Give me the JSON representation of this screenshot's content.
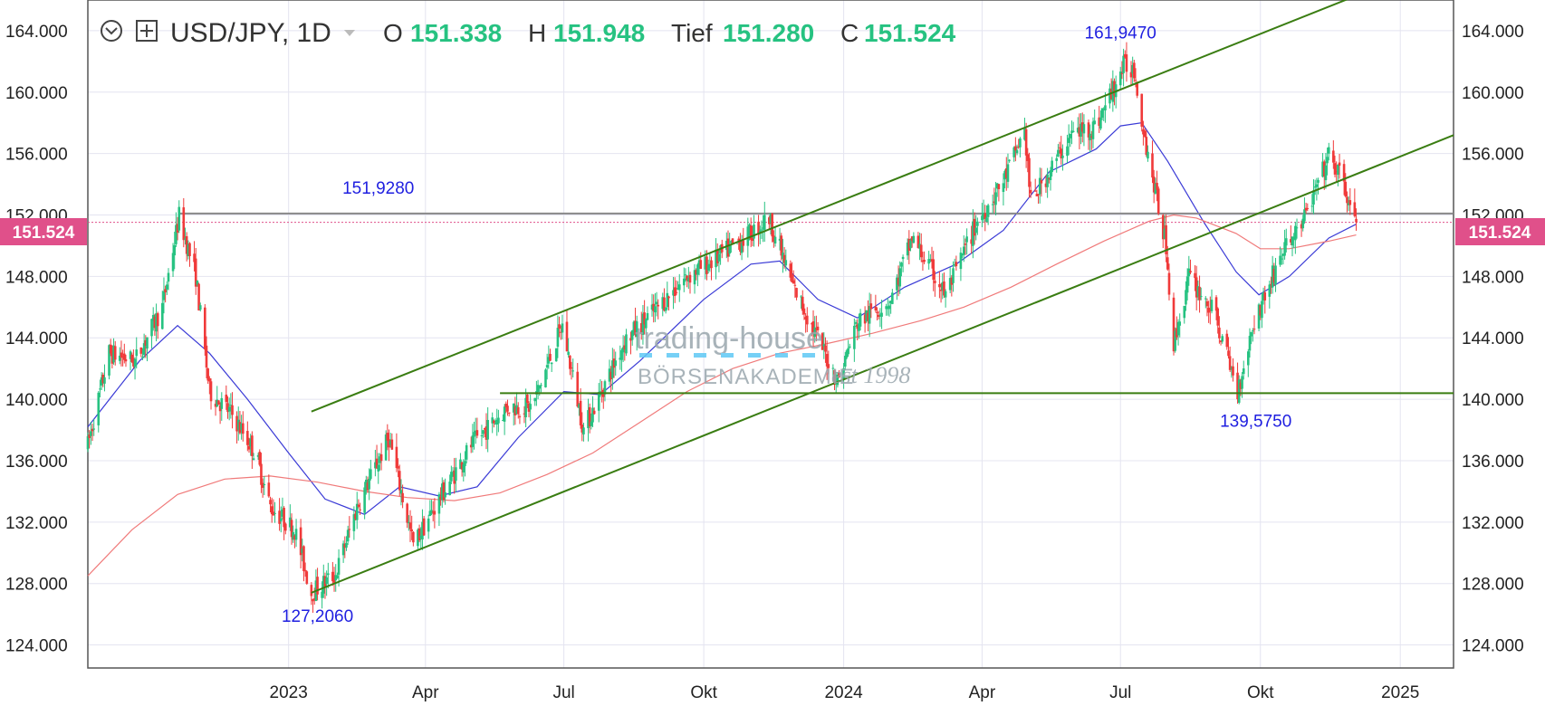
{
  "header": {
    "symbol": "USD/JPY, 1D",
    "open_label": "O",
    "open_value": "151.338",
    "high_label": "H",
    "high_value": "151.948",
    "low_label": "Tief",
    "low_value": "151.280",
    "close_label": "C",
    "close_value": "151.524"
  },
  "price_badge": "151.524",
  "watermark": {
    "line1": "trading-house",
    "line2": "BÖRSENAKADEMIE",
    "line3": "est 1998"
  },
  "colors": {
    "up": "#26c281",
    "down": "#f03a3a",
    "trendline": "#3a7d12",
    "ma_short": "#3a3ad6",
    "ma_long": "#f07a7a",
    "badge": "#e0508a",
    "annotation": "#1f1fe0",
    "resistance": "#888888",
    "grid": "#e4e4f0"
  },
  "chart_data": {
    "type": "candlestick",
    "title": "USD/JPY, 1D",
    "ylim": [
      122.5,
      166.0
    ],
    "y_ticks": [
      "124.000",
      "128.000",
      "132.000",
      "136.000",
      "140.000",
      "144.000",
      "148.000",
      "152.000",
      "156.000",
      "160.000",
      "164.000"
    ],
    "x_ticks": [
      {
        "label": "2023",
        "date": "2023-01-01"
      },
      {
        "label": "Apr",
        "date": "2023-04-01"
      },
      {
        "label": "Jul",
        "date": "2023-07-01"
      },
      {
        "label": "Okt",
        "date": "2023-10-01"
      },
      {
        "label": "2024",
        "date": "2024-01-01"
      },
      {
        "label": "Apr",
        "date": "2024-04-01"
      },
      {
        "label": "Jul",
        "date": "2024-07-01"
      },
      {
        "label": "Okt",
        "date": "2024-10-01"
      },
      {
        "label": "2025",
        "date": "2025-01-01"
      }
    ],
    "xlim": [
      "2022-08-22",
      "2025-02-05"
    ],
    "last_price": 151.524,
    "price_anchors": [
      [
        "2022-08-22",
        137.0
      ],
      [
        "2022-09-05",
        143.0
      ],
      [
        "2022-09-22",
        142.5
      ],
      [
        "2022-10-10",
        146.0
      ],
      [
        "2022-10-21",
        151.9
      ],
      [
        "2022-11-01",
        148.0
      ],
      [
        "2022-11-10",
        140.5
      ],
      [
        "2022-11-25",
        139.0
      ],
      [
        "2022-12-10",
        136.5
      ],
      [
        "2022-12-20",
        133.0
      ],
      [
        "2023-01-05",
        131.5
      ],
      [
        "2023-01-16",
        127.4
      ],
      [
        "2023-02-01",
        128.6
      ],
      [
        "2023-02-15",
        133.0
      ],
      [
        "2023-03-08",
        137.5
      ],
      [
        "2023-03-24",
        130.5
      ],
      [
        "2023-04-10",
        133.5
      ],
      [
        "2023-05-01",
        137.0
      ],
      [
        "2023-05-25",
        139.5
      ],
      [
        "2023-06-10",
        139.5
      ],
      [
        "2023-06-30",
        144.8
      ],
      [
        "2023-07-14",
        138.0
      ],
      [
        "2023-08-10",
        143.8
      ],
      [
        "2023-09-01",
        146.0
      ],
      [
        "2023-09-20",
        148.0
      ],
      [
        "2023-10-10",
        149.2
      ],
      [
        "2023-11-01",
        150.8
      ],
      [
        "2023-11-13",
        151.8
      ],
      [
        "2023-11-28",
        147.5
      ],
      [
        "2023-12-10",
        145.0
      ],
      [
        "2023-12-28",
        141.2
      ],
      [
        "2024-01-10",
        145.0
      ],
      [
        "2024-02-01",
        146.5
      ],
      [
        "2024-02-15",
        150.5
      ],
      [
        "2024-03-08",
        146.8
      ],
      [
        "2024-03-28",
        151.4
      ],
      [
        "2024-04-15",
        154.2
      ],
      [
        "2024-04-29",
        157.5
      ],
      [
        "2024-05-03",
        152.8
      ],
      [
        "2024-05-30",
        157.3
      ],
      [
        "2024-06-15",
        157.8
      ],
      [
        "2024-07-03",
        161.7
      ],
      [
        "2024-07-10",
        161.5
      ],
      [
        "2024-07-18",
        156.5
      ],
      [
        "2024-07-31",
        150.0
      ],
      [
        "2024-08-05",
        143.5
      ],
      [
        "2024-08-15",
        148.0
      ],
      [
        "2024-09-01",
        145.5
      ],
      [
        "2024-09-16",
        140.5
      ],
      [
        "2024-09-26",
        144.8
      ],
      [
        "2024-10-15",
        149.5
      ],
      [
        "2024-10-31",
        152.0
      ],
      [
        "2024-11-15",
        155.8
      ],
      [
        "2024-11-22",
        154.6
      ],
      [
        "2024-12-03",
        151.5
      ]
    ],
    "series": [
      {
        "name": "",
        "type": "moving_average",
        "points": [
          [
            "2022-08-22",
            138.2
          ],
          [
            "2022-09-25",
            142.5
          ],
          [
            "2022-10-20",
            144.8
          ],
          [
            "2022-11-10",
            143.0
          ],
          [
            "2022-12-05",
            140.0
          ],
          [
            "2023-01-01",
            136.5
          ],
          [
            "2023-01-25",
            133.5
          ],
          [
            "2023-02-20",
            132.5
          ],
          [
            "2023-03-15",
            134.3
          ],
          [
            "2023-04-10",
            133.7
          ],
          [
            "2023-05-05",
            134.3
          ],
          [
            "2023-06-01",
            137.5
          ],
          [
            "2023-07-01",
            140.5
          ],
          [
            "2023-07-25",
            140.3
          ],
          [
            "2023-08-20",
            142.5
          ],
          [
            "2023-10-01",
            146.5
          ],
          [
            "2023-11-01",
            148.8
          ],
          [
            "2023-11-20",
            149.0
          ],
          [
            "2023-12-15",
            146.5
          ],
          [
            "2024-01-10",
            145.3
          ],
          [
            "2024-02-10",
            147.3
          ],
          [
            "2024-03-15",
            148.8
          ],
          [
            "2024-04-15",
            151.0
          ],
          [
            "2024-05-15",
            154.8
          ],
          [
            "2024-06-15",
            156.3
          ],
          [
            "2024-07-01",
            157.8
          ],
          [
            "2024-07-15",
            158.0
          ],
          [
            "2024-08-01",
            155.5
          ],
          [
            "2024-08-25",
            151.5
          ],
          [
            "2024-09-15",
            148.3
          ],
          [
            "2024-09-30",
            146.8
          ],
          [
            "2024-10-20",
            148.0
          ],
          [
            "2024-11-15",
            150.5
          ],
          [
            "2024-12-03",
            151.4
          ]
        ]
      },
      {
        "name": "",
        "type": "moving_average",
        "points": [
          [
            "2022-08-22",
            128.5
          ],
          [
            "2022-09-20",
            131.5
          ],
          [
            "2022-10-20",
            133.8
          ],
          [
            "2022-11-20",
            134.8
          ],
          [
            "2022-12-20",
            135.0
          ],
          [
            "2023-01-20",
            134.6
          ],
          [
            "2023-02-20",
            134.0
          ],
          [
            "2023-03-20",
            133.6
          ],
          [
            "2023-04-20",
            133.4
          ],
          [
            "2023-05-20",
            133.9
          ],
          [
            "2023-06-20",
            135.1
          ],
          [
            "2023-07-20",
            136.5
          ],
          [
            "2023-08-20",
            138.5
          ],
          [
            "2023-09-20",
            140.5
          ],
          [
            "2023-10-20",
            142.0
          ],
          [
            "2023-11-20",
            143.0
          ],
          [
            "2023-12-20",
            143.6
          ],
          [
            "2024-01-20",
            144.3
          ],
          [
            "2024-02-20",
            145.1
          ],
          [
            "2024-03-20",
            146.0
          ],
          [
            "2024-04-20",
            147.3
          ],
          [
            "2024-05-20",
            148.8
          ],
          [
            "2024-06-20",
            150.3
          ],
          [
            "2024-07-20",
            151.6
          ],
          [
            "2024-08-05",
            152.0
          ],
          [
            "2024-08-20",
            151.8
          ],
          [
            "2024-09-15",
            150.8
          ],
          [
            "2024-10-01",
            149.8
          ],
          [
            "2024-10-20",
            149.8
          ],
          [
            "2024-11-15",
            150.3
          ],
          [
            "2024-12-03",
            150.7
          ]
        ]
      }
    ],
    "lines": [
      {
        "kind": "upper-channel",
        "from": [
          "2023-01-16",
          139.2
        ],
        "to": [
          "2025-02-05",
          168.8
        ]
      },
      {
        "kind": "lower-channel",
        "from": [
          "2023-01-16",
          127.4
        ],
        "to": [
          "2025-02-05",
          157.2
        ]
      },
      {
        "kind": "support",
        "from": [
          "2023-05-20",
          140.4
        ],
        "to": [
          "2025-02-05",
          140.4
        ]
      },
      {
        "kind": "resistance",
        "from": [
          "2022-10-21",
          152.1
        ],
        "to": [
          "2025-02-05",
          152.1
        ]
      },
      {
        "kind": "last-price",
        "from": [
          "2022-08-22",
          151.524
        ],
        "to": [
          "2025-02-05",
          151.524
        ]
      }
    ],
    "annotations": [
      {
        "text": "151,9280",
        "date": "2023-03-01",
        "price": 153.4,
        "anchor": "middle"
      },
      {
        "text": "127,2060",
        "date": "2023-01-20",
        "price": 125.5,
        "anchor": "middle"
      },
      {
        "text": "161,9470",
        "date": "2024-07-01",
        "price": 163.5,
        "anchor": "middle"
      },
      {
        "text": "139,5750",
        "date": "2024-09-28",
        "price": 138.2,
        "anchor": "middle"
      }
    ]
  }
}
